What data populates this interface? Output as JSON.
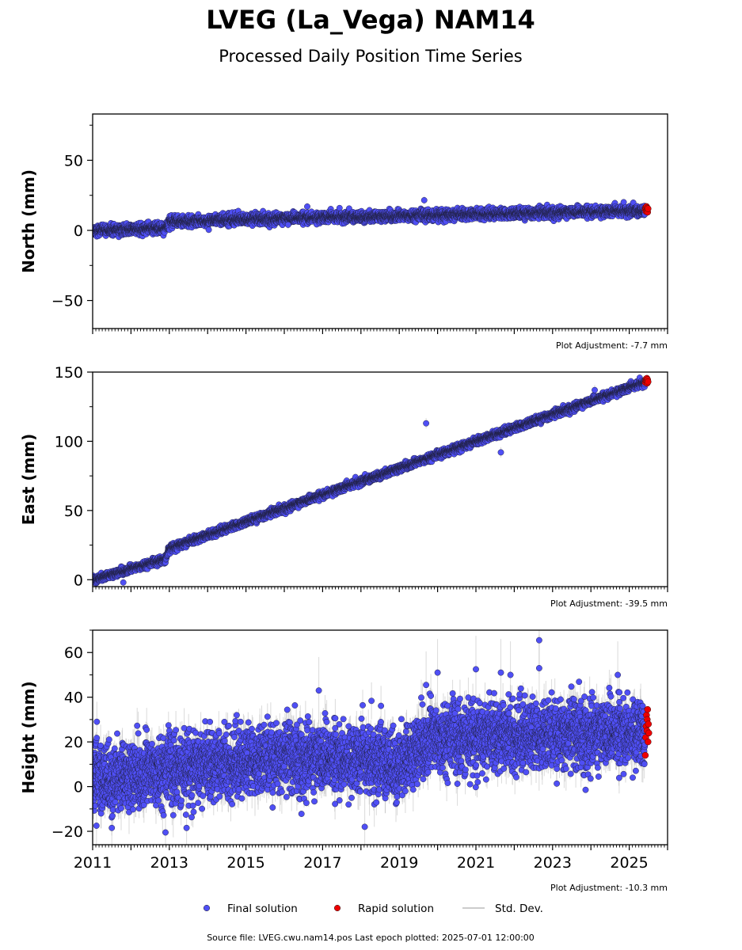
{
  "title": "LVEG (La_Vega) NAM14",
  "subtitle": "Processed Daily Position Time Series",
  "legend": {
    "final": "Final solution",
    "rapid": "Rapid solution",
    "std": "Std. Dev."
  },
  "footer": "Source file: LVEG.cwu.nam14.pos  Last epoch plotted: 2025-07-01 12:00:00",
  "colors": {
    "final": "#4f4ff5",
    "rapid": "#ee0000",
    "std": "#bbbbbb"
  },
  "chart_data": [
    {
      "type": "scatter",
      "ylabel": "North (mm)",
      "adjustment": "Plot Adjustment: -7.7 mm",
      "xlim": [
        2011.0,
        2026.0
      ],
      "ylim": [
        -70,
        83
      ],
      "yticks": [
        -50,
        0,
        50
      ],
      "ytick_labels": [
        "−50",
        "0",
        "50"
      ],
      "trend": [
        [
          2011.0,
          0.0
        ],
        [
          2012.9,
          1.5
        ],
        [
          2013.0,
          6.5
        ],
        [
          2019.0,
          10.5
        ],
        [
          2025.45,
          14.0
        ]
      ],
      "noise": 1.8,
      "err": 1.2,
      "outliers": [
        [
          2016.6,
          17.0
        ],
        [
          2019.65,
          21.5
        ],
        [
          2016.1,
          4.0
        ]
      ],
      "rapid": [
        [
          2025.42,
          15.0
        ],
        [
          2025.43,
          16.5
        ],
        [
          2025.44,
          13.5
        ],
        [
          2025.45,
          17.0
        ],
        [
          2025.46,
          14.5
        ],
        [
          2025.47,
          16.0
        ],
        [
          2025.48,
          13.0
        ],
        [
          2025.49,
          15.5
        ]
      ]
    },
    {
      "type": "scatter",
      "ylabel": "East (mm)",
      "adjustment": "Plot Adjustment: -39.5 mm",
      "xlim": [
        2011.0,
        2026.0
      ],
      "ylim": [
        -5,
        150
      ],
      "yticks": [
        0,
        50,
        100,
        150
      ],
      "ytick_labels": [
        "0",
        "50",
        "100",
        "150"
      ],
      "trend": [
        [
          2011.0,
          0.0
        ],
        [
          2012.9,
          15.0
        ],
        [
          2013.0,
          22.5
        ],
        [
          2025.45,
          143.0
        ]
      ],
      "noise": 1.3,
      "err": 1.5,
      "outliers": [
        [
          2019.7,
          113.0
        ],
        [
          2021.65,
          92.0
        ],
        [
          2011.8,
          -2.0
        ],
        [
          2024.1,
          137.0
        ]
      ],
      "rapid": [
        [
          2025.42,
          142.5
        ],
        [
          2025.43,
          144.0
        ],
        [
          2025.44,
          145.0
        ],
        [
          2025.45,
          143.5
        ],
        [
          2025.46,
          145.5
        ],
        [
          2025.47,
          142.0
        ],
        [
          2025.48,
          144.5
        ],
        [
          2025.49,
          143.0
        ]
      ]
    },
    {
      "type": "scatter",
      "ylabel": "Height (mm)",
      "adjustment": "Plot Adjustment: -10.3 mm",
      "xlim": [
        2011.0,
        2026.0
      ],
      "ylim": [
        -26,
        70
      ],
      "yticks": [
        -20,
        0,
        20,
        40,
        60
      ],
      "ytick_labels": [
        "−20",
        "0",
        "20",
        "40",
        "60"
      ],
      "xticks": [
        2011,
        2013,
        2015,
        2017,
        2019,
        2021,
        2023,
        2025
      ],
      "xtick_labels": [
        "2011",
        "2013",
        "2015",
        "2017",
        "2019",
        "2021",
        "2023",
        "2025"
      ],
      "trend": [
        [
          2011.0,
          4.0
        ],
        [
          2013.0,
          8.0
        ],
        [
          2016.0,
          13.0
        ],
        [
          2019.0,
          11.0
        ],
        [
          2019.8,
          22.0
        ],
        [
          2025.45,
          24.0
        ]
      ],
      "noise": 7.5,
      "err": 6.0,
      "outliers": [
        [
          2013.45,
          -18.5
        ],
        [
          2012.9,
          -20.5
        ],
        [
          2018.1,
          -18.0
        ],
        [
          2016.9,
          43.0
        ],
        [
          2019.7,
          45.5
        ],
        [
          2021.0,
          52.5
        ],
        [
          2021.65,
          51.0
        ],
        [
          2022.65,
          65.5
        ],
        [
          2022.65,
          53.0
        ],
        [
          2021.9,
          50.0
        ],
        [
          2024.7,
          50.0
        ],
        [
          2020.0,
          51.0
        ],
        [
          2011.1,
          -17.5
        ],
        [
          2011.5,
          -18.5
        ]
      ],
      "rapid": [
        [
          2025.42,
          14.0
        ],
        [
          2025.43,
          22.0
        ],
        [
          2025.44,
          27.0
        ],
        [
          2025.45,
          32.0
        ],
        [
          2025.46,
          25.0
        ],
        [
          2025.47,
          30.0
        ],
        [
          2025.48,
          34.5
        ],
        [
          2025.49,
          20.0
        ],
        [
          2025.5,
          28.0
        ],
        [
          2025.51,
          24.0
        ]
      ]
    }
  ]
}
